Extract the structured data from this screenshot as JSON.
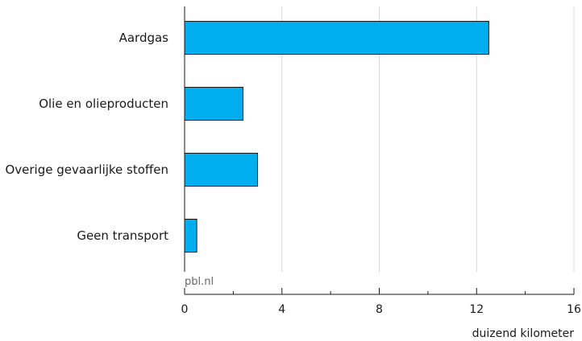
{
  "chart_data": {
    "type": "bar",
    "orientation": "horizontal",
    "categories": [
      "Aardgas",
      "Olie en olieproducten",
      "Overige gevaarlijke stoffen",
      "Geen transport"
    ],
    "values": [
      12.5,
      2.4,
      3.0,
      0.5
    ],
    "xlim": [
      0,
      16
    ],
    "major_ticks": [
      0,
      4,
      8,
      12,
      16
    ],
    "minor_ticks": [
      2,
      6,
      10,
      14
    ],
    "xlabel": "duizend kilometer",
    "title": "",
    "grid": true,
    "colors": {
      "bar": "#00aeef",
      "bar_stroke": "#1a1a1a",
      "grid": "#d9d9d9",
      "axis": "#1a1a1a"
    }
  },
  "source": "pbl.nl"
}
